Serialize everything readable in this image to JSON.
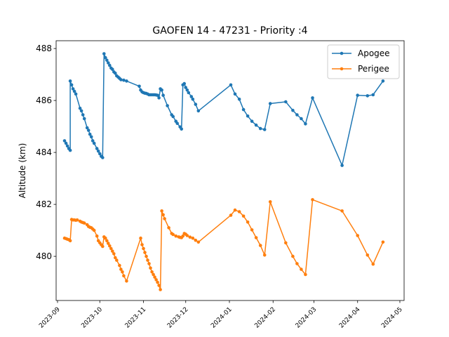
{
  "chart_data": {
    "type": "line",
    "title": "GAOFEN 14 - 47231 - Priority :4",
    "xlabel": "",
    "ylabel": "Altitude (km)",
    "xlim": [
      "2023-08-31",
      "2024-05-04"
    ],
    "ylim": [
      478.3,
      488.3
    ],
    "x_ticks": [
      "2023-09",
      "2023-10",
      "2023-11",
      "2023-12",
      "2024-01",
      "2024-02",
      "2024-03",
      "2024-04",
      "2024-05"
    ],
    "y_ticks": [
      480,
      482,
      484,
      486,
      488
    ],
    "grid": false,
    "legend_position": "top-right",
    "series": [
      {
        "name": "Apogee",
        "color": "#1f77b4",
        "points": [
          [
            "2023-09-06",
            484.45
          ],
          [
            "2023-09-07",
            484.35
          ],
          [
            "2023-09-08",
            484.25
          ],
          [
            "2023-09-09",
            484.15
          ],
          [
            "2023-09-10",
            484.08
          ],
          [
            "2023-09-10",
            486.75
          ],
          [
            "2023-09-11",
            486.6
          ],
          [
            "2023-09-12",
            486.45
          ],
          [
            "2023-09-13",
            486.35
          ],
          [
            "2023-09-14",
            486.25
          ],
          [
            "2023-09-17",
            485.7
          ],
          [
            "2023-09-18",
            485.6
          ],
          [
            "2023-09-19",
            485.45
          ],
          [
            "2023-09-20",
            485.3
          ],
          [
            "2023-09-22",
            484.95
          ],
          [
            "2023-09-23",
            484.85
          ],
          [
            "2023-09-24",
            484.7
          ],
          [
            "2023-09-25",
            484.6
          ],
          [
            "2023-09-26",
            484.45
          ],
          [
            "2023-09-27",
            484.35
          ],
          [
            "2023-09-29",
            484.15
          ],
          [
            "2023-09-30",
            484.05
          ],
          [
            "2023-10-01",
            483.95
          ],
          [
            "2023-10-02",
            483.85
          ],
          [
            "2023-10-03",
            483.8
          ],
          [
            "2023-10-04",
            487.8
          ],
          [
            "2023-10-05",
            487.65
          ],
          [
            "2023-10-06",
            487.55
          ],
          [
            "2023-10-07",
            487.45
          ],
          [
            "2023-10-08",
            487.35
          ],
          [
            "2023-10-09",
            487.25
          ],
          [
            "2023-10-10",
            487.2
          ],
          [
            "2023-10-11",
            487.1
          ],
          [
            "2023-10-12",
            487.05
          ],
          [
            "2023-10-13",
            486.95
          ],
          [
            "2023-10-14",
            486.9
          ],
          [
            "2023-10-15",
            486.85
          ],
          [
            "2023-10-16",
            486.8
          ],
          [
            "2023-10-18",
            486.78
          ],
          [
            "2023-10-20",
            486.75
          ],
          [
            "2023-10-29",
            486.55
          ],
          [
            "2023-10-30",
            486.4
          ],
          [
            "2023-10-31",
            486.33
          ],
          [
            "2023-11-01",
            486.3
          ],
          [
            "2023-11-02",
            486.28
          ],
          [
            "2023-11-03",
            486.27
          ],
          [
            "2023-11-04",
            486.25
          ],
          [
            "2023-11-05",
            486.22
          ],
          [
            "2023-11-06",
            486.22
          ],
          [
            "2023-11-07",
            486.22
          ],
          [
            "2023-11-08",
            486.22
          ],
          [
            "2023-11-09",
            486.22
          ],
          [
            "2023-11-10",
            486.21
          ],
          [
            "2023-11-11",
            486.2
          ],
          [
            "2023-11-12",
            486.1
          ],
          [
            "2023-11-13",
            486.45
          ],
          [
            "2023-11-14",
            486.4
          ],
          [
            "2023-11-15",
            486.2
          ],
          [
            "2023-11-18",
            485.8
          ],
          [
            "2023-11-21",
            485.45
          ],
          [
            "2023-11-22",
            485.38
          ],
          [
            "2023-11-24",
            485.2
          ],
          [
            "2023-11-25",
            485.12
          ],
          [
            "2023-11-27",
            484.98
          ],
          [
            "2023-11-28",
            484.9
          ],
          [
            "2023-11-29",
            486.6
          ],
          [
            "2023-11-30",
            486.65
          ],
          [
            "2023-12-01",
            486.5
          ],
          [
            "2023-12-02",
            486.4
          ],
          [
            "2023-12-03",
            486.3
          ],
          [
            "2023-12-05",
            486.15
          ],
          [
            "2023-12-06",
            486.05
          ],
          [
            "2023-12-08",
            485.85
          ],
          [
            "2023-12-10",
            485.6
          ],
          [
            "2024-01-02",
            486.6
          ],
          [
            "2024-01-05",
            486.25
          ],
          [
            "2024-01-08",
            486.05
          ],
          [
            "2024-01-11",
            485.65
          ],
          [
            "2024-01-14",
            485.4
          ],
          [
            "2024-01-17",
            485.2
          ],
          [
            "2024-01-20",
            485.05
          ],
          [
            "2024-01-23",
            484.92
          ],
          [
            "2024-01-26",
            484.88
          ],
          [
            "2024-01-30",
            485.88
          ],
          [
            "2024-02-10",
            485.95
          ],
          [
            "2024-02-15",
            485.62
          ],
          [
            "2024-02-18",
            485.45
          ],
          [
            "2024-02-21",
            485.3
          ],
          [
            "2024-02-24",
            485.1
          ],
          [
            "2024-02-29",
            486.1
          ],
          [
            "2024-03-21",
            483.5
          ],
          [
            "2024-04-01",
            486.2
          ],
          [
            "2024-04-08",
            486.18
          ],
          [
            "2024-04-12",
            486.22
          ],
          [
            "2024-04-19",
            486.75
          ]
        ]
      },
      {
        "name": "Perigee",
        "color": "#ff7f0e",
        "points": [
          [
            "2023-09-06",
            480.7
          ],
          [
            "2023-09-07",
            480.68
          ],
          [
            "2023-09-08",
            480.66
          ],
          [
            "2023-09-09",
            480.64
          ],
          [
            "2023-09-10",
            480.6
          ],
          [
            "2023-09-11",
            481.42
          ],
          [
            "2023-09-12",
            481.4
          ],
          [
            "2023-09-13",
            481.4
          ],
          [
            "2023-09-14",
            481.39
          ],
          [
            "2023-09-15",
            481.4
          ],
          [
            "2023-09-17",
            481.35
          ],
          [
            "2023-09-18",
            481.32
          ],
          [
            "2023-09-19",
            481.3
          ],
          [
            "2023-09-20",
            481.28
          ],
          [
            "2023-09-22",
            481.22
          ],
          [
            "2023-09-23",
            481.15
          ],
          [
            "2023-09-24",
            481.12
          ],
          [
            "2023-09-25",
            481.1
          ],
          [
            "2023-09-26",
            481.05
          ],
          [
            "2023-09-27",
            481.0
          ],
          [
            "2023-09-29",
            480.78
          ],
          [
            "2023-09-30",
            480.6
          ],
          [
            "2023-10-01",
            480.52
          ],
          [
            "2023-10-02",
            480.45
          ],
          [
            "2023-10-03",
            480.38
          ],
          [
            "2023-10-04",
            480.75
          ],
          [
            "2023-10-05",
            480.7
          ],
          [
            "2023-10-06",
            480.6
          ],
          [
            "2023-10-07",
            480.5
          ],
          [
            "2023-10-08",
            480.4
          ],
          [
            "2023-10-09",
            480.3
          ],
          [
            "2023-10-10",
            480.2
          ],
          [
            "2023-10-11",
            480.1
          ],
          [
            "2023-10-12",
            479.95
          ],
          [
            "2023-10-13",
            479.85
          ],
          [
            "2023-10-15",
            479.65
          ],
          [
            "2023-10-16",
            479.5
          ],
          [
            "2023-10-17",
            479.4
          ],
          [
            "2023-10-18",
            479.25
          ],
          [
            "2023-10-20",
            479.05
          ],
          [
            "2023-10-30",
            480.7
          ],
          [
            "2023-10-31",
            480.45
          ],
          [
            "2023-11-01",
            480.3
          ],
          [
            "2023-11-02",
            480.15
          ],
          [
            "2023-11-03",
            480.0
          ],
          [
            "2023-11-04",
            479.85
          ],
          [
            "2023-11-05",
            479.72
          ],
          [
            "2023-11-06",
            479.55
          ],
          [
            "2023-11-07",
            479.4
          ],
          [
            "2023-11-08",
            479.3
          ],
          [
            "2023-11-09",
            479.2
          ],
          [
            "2023-11-10",
            479.1
          ],
          [
            "2023-11-11",
            479.0
          ],
          [
            "2023-11-12",
            478.88
          ],
          [
            "2023-11-13",
            478.72
          ],
          [
            "2023-11-14",
            481.75
          ],
          [
            "2023-11-15",
            481.6
          ],
          [
            "2023-11-16",
            481.45
          ],
          [
            "2023-11-19",
            481.1
          ],
          [
            "2023-11-21",
            480.88
          ],
          [
            "2023-11-22",
            480.84
          ],
          [
            "2023-11-24",
            480.78
          ],
          [
            "2023-11-26",
            480.75
          ],
          [
            "2023-11-27",
            480.73
          ],
          [
            "2023-11-28",
            480.72
          ],
          [
            "2023-11-29",
            480.78
          ],
          [
            "2023-11-30",
            480.88
          ],
          [
            "2023-12-01",
            480.85
          ],
          [
            "2023-12-02",
            480.8
          ],
          [
            "2023-12-04",
            480.74
          ],
          [
            "2023-12-06",
            480.7
          ],
          [
            "2023-12-08",
            480.62
          ],
          [
            "2023-12-10",
            480.55
          ],
          [
            "2024-01-02",
            481.58
          ],
          [
            "2024-01-05",
            481.78
          ],
          [
            "2024-01-08",
            481.72
          ],
          [
            "2024-01-11",
            481.55
          ],
          [
            "2024-01-14",
            481.32
          ],
          [
            "2024-01-17",
            481.02
          ],
          [
            "2024-01-20",
            480.72
          ],
          [
            "2024-01-23",
            480.42
          ],
          [
            "2024-01-26",
            480.05
          ],
          [
            "2024-01-30",
            482.1
          ],
          [
            "2024-02-10",
            480.52
          ],
          [
            "2024-02-15",
            480.0
          ],
          [
            "2024-02-18",
            479.72
          ],
          [
            "2024-02-21",
            479.5
          ],
          [
            "2024-02-24",
            479.3
          ],
          [
            "2024-02-29",
            482.18
          ],
          [
            "2024-03-21",
            481.75
          ],
          [
            "2024-04-01",
            480.8
          ],
          [
            "2024-04-08",
            480.05
          ],
          [
            "2024-04-12",
            479.7
          ],
          [
            "2024-04-19",
            480.55
          ]
        ]
      }
    ]
  }
}
